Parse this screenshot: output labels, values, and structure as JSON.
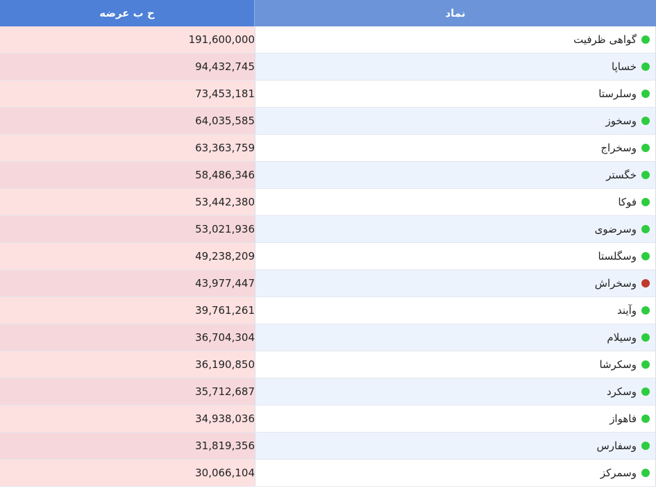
{
  "header": {
    "symbol_label": "نماد",
    "value_label": "ح ب عرضه"
  },
  "colors": {
    "status_green": "#2ecc40",
    "status_red": "#c0392b"
  },
  "rows": [
    {
      "symbol": "گواهی ظرفیت",
      "value": "191,600,000",
      "status": "green"
    },
    {
      "symbol": "خساپا",
      "value": "94,432,745",
      "status": "green"
    },
    {
      "symbol": "وسلرستا",
      "value": "73,453,181",
      "status": "green"
    },
    {
      "symbol": "وسخوز",
      "value": "64,035,585",
      "status": "green"
    },
    {
      "symbol": "وسخراج",
      "value": "63,363,759",
      "status": "green"
    },
    {
      "symbol": "خگستر",
      "value": "58,486,346",
      "status": "green"
    },
    {
      "symbol": "فوکا",
      "value": "53,442,380",
      "status": "green"
    },
    {
      "symbol": "وسرضوی",
      "value": "53,021,936",
      "status": "green"
    },
    {
      "symbol": "وسگلستا",
      "value": "49,238,209",
      "status": "green"
    },
    {
      "symbol": "وسخراش",
      "value": "43,977,447",
      "status": "red"
    },
    {
      "symbol": "وآیند",
      "value": "39,761,261",
      "status": "green"
    },
    {
      "symbol": "وسیلام",
      "value": "36,704,304",
      "status": "green"
    },
    {
      "symbol": "وسکرشا",
      "value": "36,190,850",
      "status": "green"
    },
    {
      "symbol": "وسکرد",
      "value": "35,712,687",
      "status": "green"
    },
    {
      "symbol": "فاهواز",
      "value": "34,938,036",
      "status": "green"
    },
    {
      "symbol": "وسفارس",
      "value": "31,819,356",
      "status": "green"
    },
    {
      "symbol": "وسمرکز",
      "value": "30,066,104",
      "status": "green"
    }
  ]
}
